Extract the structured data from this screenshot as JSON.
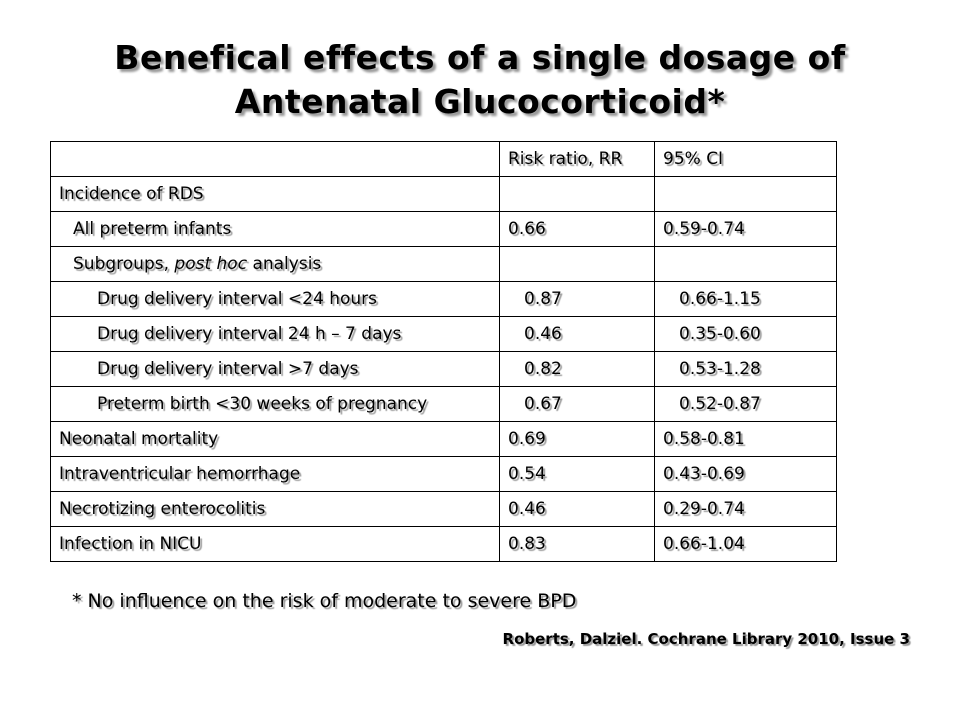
{
  "title": {
    "line1": "Benefical effects of a single dosage of",
    "line2": "Antenatal Glucocorticoid*"
  },
  "table": {
    "headers": [
      "",
      "Risk ratio, RR",
      "95% CI"
    ],
    "rows": [
      {
        "label": "Incidence of RDS",
        "rr": "",
        "ci": ""
      },
      {
        "label": "All preterm infants",
        "rr": "0.66",
        "ci": "0.59-0.74"
      },
      {
        "label_prefix": "Subgroups, ",
        "label_italic": "post hoc",
        "label_suffix": " analysis",
        "rr": "",
        "ci": ""
      },
      {
        "label": "Drug delivery interval <24 hours",
        "rr": "0.87",
        "ci": "0.66-1.15"
      },
      {
        "label": "Drug delivery interval 24 h – 7 days",
        "rr": "0.46",
        "ci": "0.35-0.60"
      },
      {
        "label": "Drug delivery interval >7 days",
        "rr": "0.82",
        "ci": "0.53-1.28"
      },
      {
        "label": "Preterm birth <30 weeks of pregnancy",
        "rr": "0.67",
        "ci": "0.52-0.87"
      },
      {
        "label": "Neonatal mortality",
        "rr": "0.69",
        "ci": "0.58-0.81"
      },
      {
        "label": "Intraventricular hemorrhage",
        "rr": "0.54",
        "ci": "0.43-0.69"
      },
      {
        "label": "Necrotizing enterocolitis",
        "rr": "0.46",
        "ci": "0.29-0.74"
      },
      {
        "label": "Infection in NICU",
        "rr": "0.83",
        "ci": "0.66-1.04"
      }
    ]
  },
  "footnote": "* No influence on the risk of moderate to severe BPD",
  "citation": "Roberts, Dalziel. Cochrane Library 2010, Issue 3"
}
